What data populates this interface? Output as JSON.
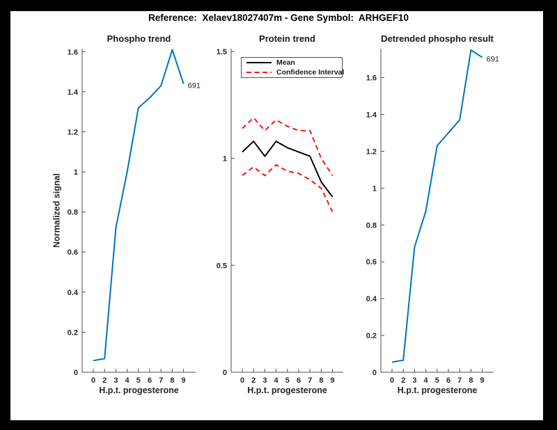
{
  "suptitle": "Reference:  Xelaev18027407m - Gene Symbol:  ARHGEF10",
  "colors": {
    "line_blue": "#0072BD",
    "ci_red": "#ff0d0d",
    "mean_black": "#000000",
    "axis_gray": "#4d4d4d",
    "text_dark": "#262626",
    "frame_black": "#000000",
    "canvas_white": "#ffffff"
  },
  "chart_data": [
    {
      "type": "line",
      "title": "Phospho trend",
      "xlabel": "H.p.t. progesterone",
      "ylabel": "Normalized signal",
      "x_ticklabels": [
        "0",
        "2",
        "3",
        "4",
        "5",
        "6",
        "7",
        "8",
        "9"
      ],
      "yticks": [
        0,
        0.2,
        0.4,
        0.6,
        0.8,
        1,
        1.2,
        1.4,
        1.6
      ],
      "ytick_labels": [
        "0",
        "0.2",
        "0.4",
        "0.6",
        "0.8",
        "1",
        "1.2",
        "1.4",
        "1.6"
      ],
      "ylim": [
        0,
        1.615
      ],
      "grid": false,
      "legend": null,
      "end_label": "691",
      "series": [
        {
          "name": "Phospho signal",
          "color": "#0072BD",
          "dash": null,
          "values": [
            0.058,
            0.068,
            0.72,
            1.0,
            1.32,
            1.37,
            1.43,
            1.61,
            1.44
          ]
        }
      ]
    },
    {
      "type": "line",
      "title": "Protein trend",
      "xlabel": "H.p.t. progesterone",
      "ylabel": "",
      "x_ticklabels": [
        "0",
        "2",
        "3",
        "4",
        "5",
        "6",
        "7",
        "8",
        "9"
      ],
      "yticks": [
        0,
        0.5,
        1,
        1.5
      ],
      "ytick_labels": [
        "0",
        "0.5",
        "1",
        "1.5"
      ],
      "ylim": [
        0,
        1.513
      ],
      "grid": false,
      "legend": {
        "position": "northwest",
        "entries": [
          "Mean",
          "Confidence Interval"
        ]
      },
      "end_label": null,
      "series": [
        {
          "name": "Mean",
          "color": "#000000",
          "dash": null,
          "values": [
            1.03,
            1.08,
            1.01,
            1.08,
            1.05,
            1.03,
            1.01,
            0.89,
            0.82
          ]
        },
        {
          "name": "Confidence Interval upper",
          "color": "#ff0d0d",
          "dash": [
            7,
            5
          ],
          "values": [
            1.14,
            1.19,
            1.13,
            1.18,
            1.15,
            1.13,
            1.13,
            1.0,
            0.92
          ]
        },
        {
          "name": "Confidence Interval lower",
          "color": "#ff0d0d",
          "dash": [
            7,
            5
          ],
          "values": [
            0.92,
            0.96,
            0.92,
            0.97,
            0.94,
            0.93,
            0.9,
            0.86,
            0.75
          ]
        }
      ]
    },
    {
      "type": "line",
      "title": "Detrended phospho result",
      "xlabel": "H.p.t. progesterone",
      "ylabel": "",
      "x_ticklabels": [
        "0",
        "2",
        "3",
        "4",
        "5",
        "6",
        "7",
        "8",
        "9"
      ],
      "yticks": [
        0,
        0.2,
        0.4,
        0.6,
        0.8,
        1,
        1.2,
        1.4,
        1.6
      ],
      "ytick_labels": [
        "0",
        "0.2",
        "0.4",
        "0.6",
        "0.8",
        "1",
        "1.2",
        "1.4",
        "1.6"
      ],
      "ylim": [
        0,
        1.757
      ],
      "grid": false,
      "legend": null,
      "end_label": "691",
      "series": [
        {
          "name": "Detrended phospho signal",
          "color": "#0072BD",
          "dash": null,
          "values": [
            0.055,
            0.065,
            0.68,
            0.875,
            1.23,
            1.3,
            1.37,
            1.75,
            1.71
          ]
        }
      ]
    }
  ]
}
